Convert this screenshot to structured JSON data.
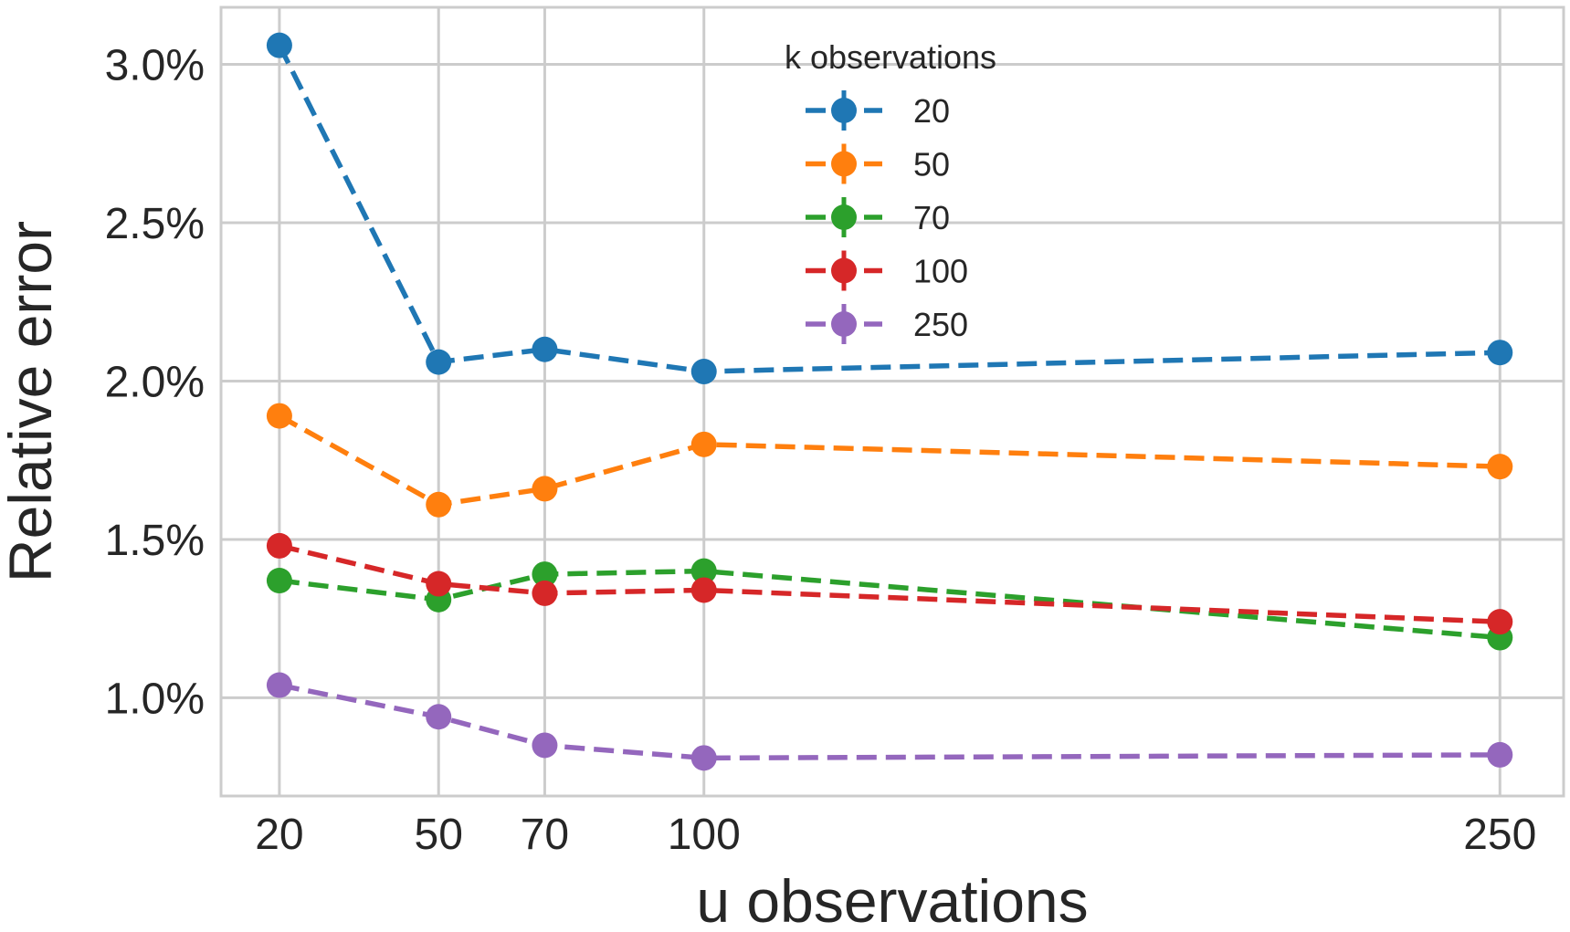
{
  "chart_data": {
    "type": "line",
    "title": "",
    "xlabel": "u observations",
    "ylabel": "Relative error",
    "x": [
      20,
      50,
      70,
      100,
      250
    ],
    "x_tick_labels": [
      "20",
      "50",
      "70",
      "100",
      "250"
    ],
    "xlim": [
      9,
      262
    ],
    "ylim": [
      0.69,
      3.18
    ],
    "y_ticks": [
      1.0,
      1.5,
      2.0,
      2.5,
      3.0
    ],
    "y_tick_labels": [
      "1.0%",
      "1.5%",
      "2.0%",
      "2.5%",
      "3.0%"
    ],
    "y_unit": "%",
    "grid": true,
    "legend": {
      "title": "k observations",
      "position": "top-center"
    },
    "series": [
      {
        "name": "20",
        "color": "#1f77b4",
        "values": [
          3.06,
          2.06,
          2.1,
          2.03,
          2.09
        ]
      },
      {
        "name": "50",
        "color": "#ff7f0e",
        "values": [
          1.89,
          1.61,
          1.66,
          1.8,
          1.73
        ]
      },
      {
        "name": "70",
        "color": "#2ca02c",
        "values": [
          1.37,
          1.31,
          1.39,
          1.4,
          1.19
        ]
      },
      {
        "name": "100",
        "color": "#d62728",
        "values": [
          1.48,
          1.36,
          1.33,
          1.34,
          1.24
        ]
      },
      {
        "name": "250",
        "color": "#9467bd",
        "values": [
          1.04,
          0.94,
          0.85,
          0.81,
          0.82
        ]
      }
    ]
  }
}
